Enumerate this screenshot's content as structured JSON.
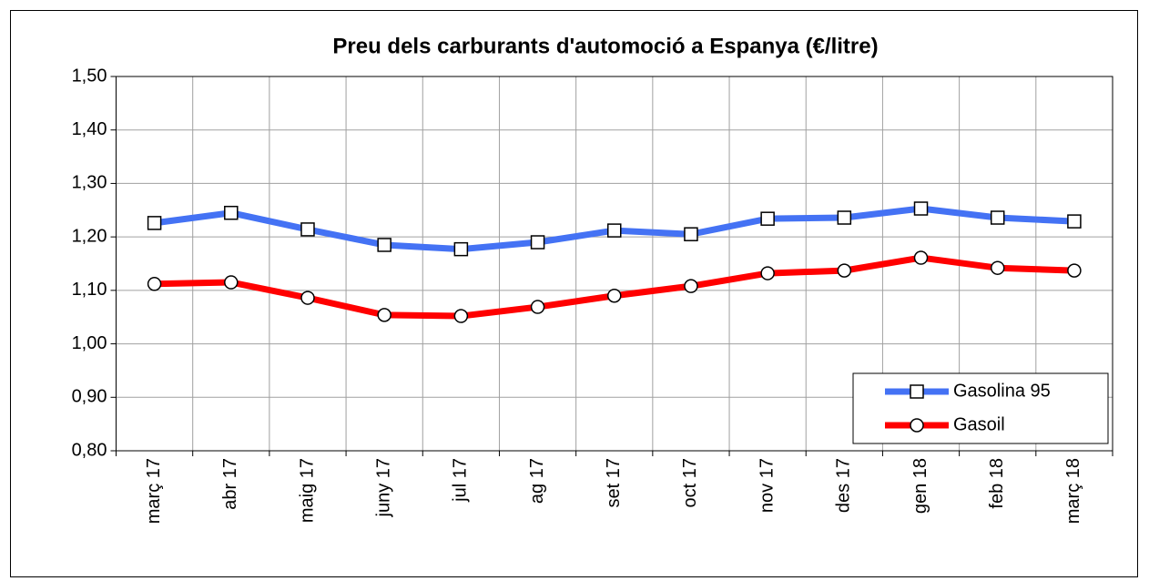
{
  "chart_data": {
    "type": "line",
    "title": "Preu dels carburants d'automoció a Espanya (€/litre)",
    "categories": [
      "març 17",
      "abr 17",
      "maig 17",
      "juny 17",
      "jul 17",
      "ag 17",
      "set 17",
      "oct 17",
      "nov 17",
      "des 17",
      "gen 18",
      "feb 18",
      "març 18"
    ],
    "series": [
      {
        "name": "Gasolina 95",
        "color": "#4472f4",
        "marker": "square",
        "values": [
          1.226,
          1.245,
          1.214,
          1.185,
          1.177,
          1.19,
          1.212,
          1.205,
          1.234,
          1.236,
          1.253,
          1.236,
          1.229
        ]
      },
      {
        "name": "Gasoil",
        "color": "#ff0000",
        "marker": "circle",
        "values": [
          1.112,
          1.115,
          1.086,
          1.054,
          1.052,
          1.069,
          1.09,
          1.108,
          1.132,
          1.137,
          1.161,
          1.142,
          1.137
        ]
      }
    ],
    "ylim": [
      0.8,
      1.5
    ],
    "yticks": [
      {
        "value": 0.8,
        "label": "0,80"
      },
      {
        "value": 0.9,
        "label": "0,90"
      },
      {
        "value": 1.0,
        "label": "1,00"
      },
      {
        "value": 1.1,
        "label": "1,10"
      },
      {
        "value": 1.2,
        "label": "1,20"
      },
      {
        "value": 1.3,
        "label": "1,30"
      },
      {
        "value": 1.4,
        "label": "1,40"
      },
      {
        "value": 1.5,
        "label": "1,50"
      }
    ],
    "grid": true,
    "legend": "bottom-right"
  }
}
